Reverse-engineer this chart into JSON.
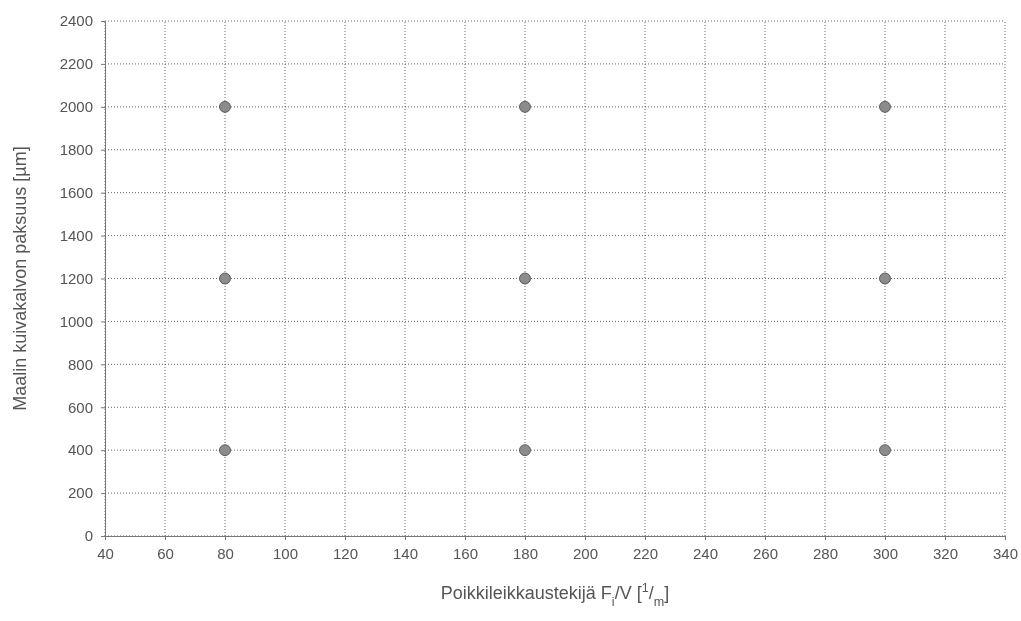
{
  "chart_data": {
    "type": "scatter",
    "xlabel": "Poikkileikkaustekijä F$_{i}$/V [$^{1}$/$_{m}$]",
    "ylabel": "Maalin kuivakalvon paksuus [µm]",
    "x": [
      80,
      80,
      80,
      180,
      180,
      180,
      300,
      300,
      300
    ],
    "series": [
      {
        "color": "#8c8c8c",
        "values": [
          400,
          1200,
          2000,
          400,
          1200,
          2000,
          400,
          1200,
          2000
        ]
      }
    ],
    "xlim": [
      40,
      340
    ],
    "xticks": [
      40,
      60,
      80,
      100,
      120,
      140,
      160,
      180,
      200,
      220,
      240,
      260,
      280,
      300,
      320,
      340
    ],
    "ylim": [
      0,
      2400
    ],
    "yticks": [
      0,
      200,
      400,
      600,
      800,
      1000,
      1200,
      1400,
      1600,
      1800,
      2000,
      2200,
      2400
    ],
    "grid": true,
    "marker": "circle"
  }
}
